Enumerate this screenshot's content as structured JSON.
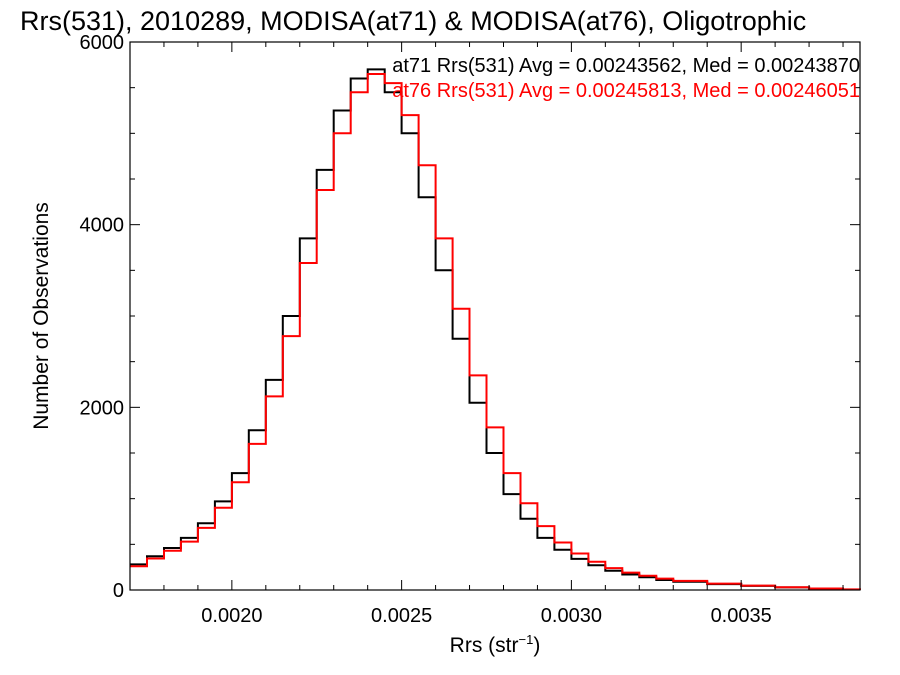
{
  "chart_data": {
    "type": "histogram",
    "title": "Rrs(531), 2010289, MODISA(at71) & MODISA(at76), Oligotrophic",
    "xlabel": {
      "base": "Rrs (str",
      "sup": "−1",
      "end": ")"
    },
    "ylabel": "Number of Observations",
    "xlim": [
      0.0017,
      0.00385
    ],
    "ylim": [
      0,
      6000
    ],
    "x_ticks": [
      0.002,
      0.0025,
      0.003,
      0.0035
    ],
    "x_tick_labels": [
      "0.0020",
      "0.0025",
      "0.0030",
      "0.0035"
    ],
    "y_ticks": [
      0,
      2000,
      4000,
      6000
    ],
    "y_tick_labels": [
      "0",
      "2000",
      "4000",
      "6000"
    ],
    "grid": false,
    "series": [
      {
        "name": "at71",
        "color": "#000000",
        "annotation": "at71 Rrs(531) Avg = 0.00243562, Med = 0.00243870",
        "x": [
          0.0017,
          0.00175,
          0.0018,
          0.00185,
          0.0019,
          0.00195,
          0.002,
          0.00205,
          0.0021,
          0.00215,
          0.0022,
          0.00225,
          0.0023,
          0.00235,
          0.0024,
          0.00245,
          0.0025,
          0.00255,
          0.0026,
          0.00265,
          0.0027,
          0.00275,
          0.0028,
          0.00285,
          0.0029,
          0.00295,
          0.003,
          0.00305,
          0.0031,
          0.00315,
          0.0032,
          0.00325,
          0.0033,
          0.0034,
          0.0035,
          0.0036,
          0.0037,
          0.0038,
          0.00385
        ],
        "y": [
          280,
          370,
          460,
          570,
          730,
          970,
          1280,
          1750,
          2300,
          3000,
          3850,
          4600,
          5250,
          5600,
          5700,
          5450,
          5000,
          4300,
          3500,
          2750,
          2050,
          1500,
          1050,
          780,
          570,
          440,
          340,
          270,
          210,
          170,
          140,
          110,
          90,
          65,
          45,
          28,
          15,
          6,
          2
        ]
      },
      {
        "name": "at76",
        "color": "#ff0000",
        "annotation": "at76 Rrs(531) Avg = 0.00245813, Med = 0.00246051",
        "x": [
          0.0017,
          0.00175,
          0.0018,
          0.00185,
          0.0019,
          0.00195,
          0.002,
          0.00205,
          0.0021,
          0.00215,
          0.0022,
          0.00225,
          0.0023,
          0.00235,
          0.0024,
          0.00245,
          0.0025,
          0.00255,
          0.0026,
          0.00265,
          0.0027,
          0.00275,
          0.0028,
          0.00285,
          0.0029,
          0.00295,
          0.003,
          0.00305,
          0.0031,
          0.00315,
          0.0032,
          0.00325,
          0.0033,
          0.0034,
          0.0035,
          0.0036,
          0.0037,
          0.0038,
          0.00385
        ],
        "y": [
          260,
          345,
          430,
          530,
          680,
          900,
          1180,
          1600,
          2120,
          2780,
          3580,
          4380,
          5000,
          5450,
          5650,
          5550,
          5200,
          4650,
          3850,
          3080,
          2350,
          1780,
          1280,
          950,
          700,
          520,
          400,
          310,
          240,
          190,
          155,
          125,
          100,
          70,
          48,
          30,
          16,
          7,
          2
        ]
      }
    ]
  }
}
